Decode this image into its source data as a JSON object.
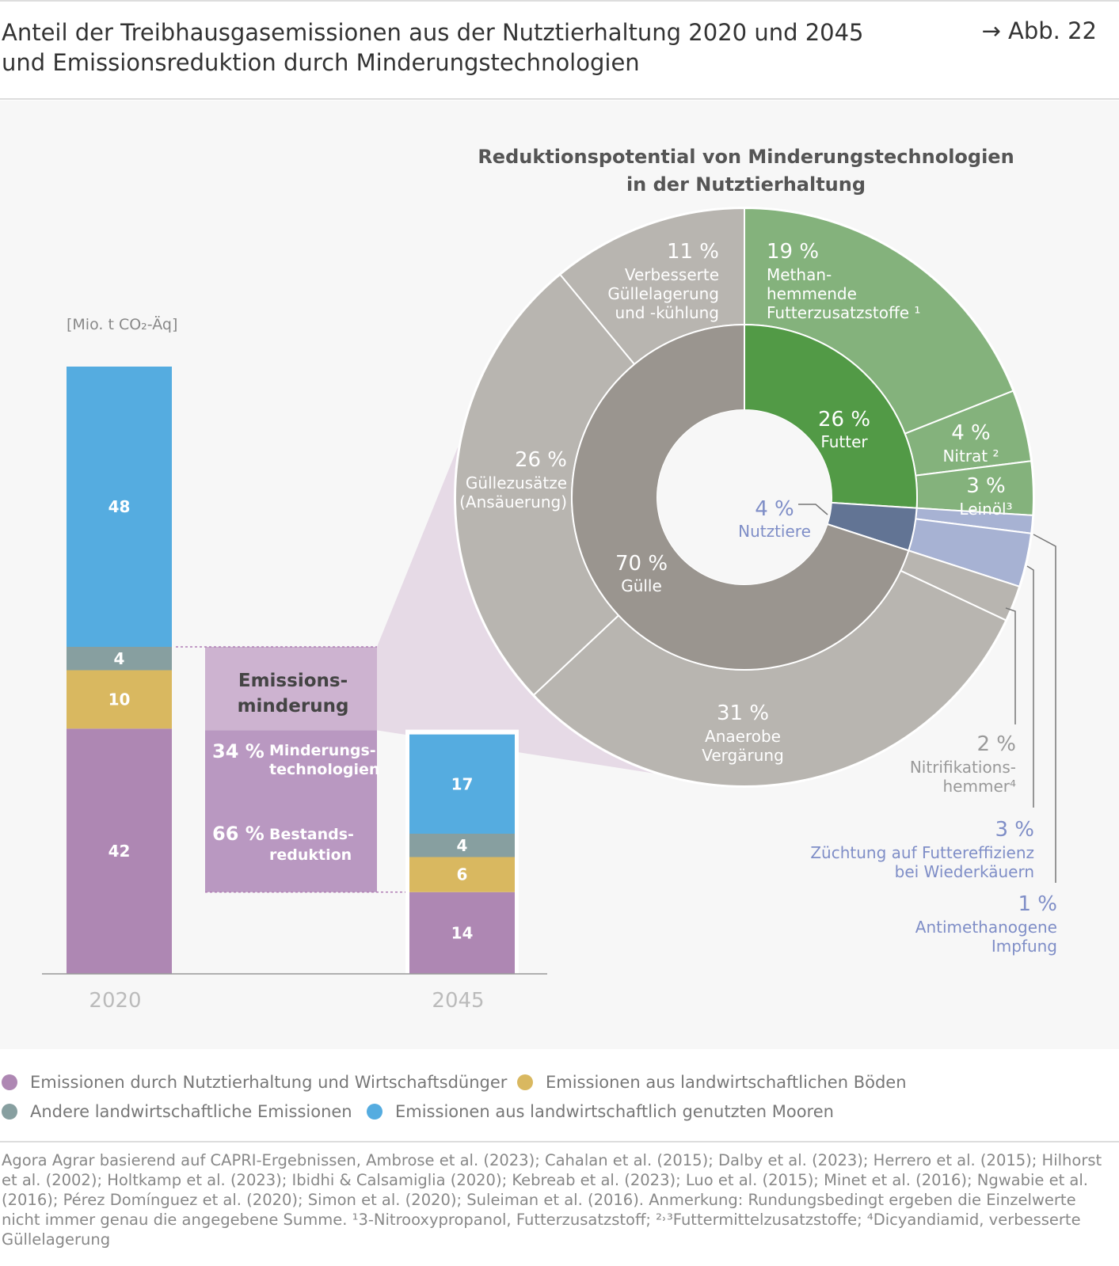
{
  "header": {
    "title_line1": "Anteil der Treibhausgasemissionen aus der Nutztierhaltung 2020 und 2045",
    "title_line2": "und Emissionsreduktion durch Minderungstechnologien",
    "figure_ref": "→ Abb. 22"
  },
  "colors": {
    "livestock": "#ae87b3",
    "soils": "#d9b860",
    "other": "#879fa0",
    "peat": "#55ace0",
    "mind_tech": "#cdb3d0",
    "bestand": "#b998c1",
    "green_outer": "#84b27c",
    "green_inner": "#529a46",
    "blue_outer": "#a7b2d3",
    "blue_inner": "#627494",
    "grey_outer": "#b8b5b0",
    "grey_inner": "#9a958f"
  },
  "chart_data": [
    {
      "type": "bar",
      "stacked": true,
      "unit_label": "[Mio. t CO₂-Äq]",
      "categories": [
        "2020",
        "2045"
      ],
      "series": [
        {
          "name": "Emissionen durch Nutztierhaltung und Wirtschaftsdünger",
          "values": [
            42,
            14
          ],
          "color_key": "livestock"
        },
        {
          "name": "Emissionen aus landwirtschaftlichen Böden",
          "values": [
            10,
            6
          ],
          "color_key": "soils"
        },
        {
          "name": "Andere landwirtschaftliche Emissionen",
          "values": [
            4,
            4
          ],
          "color_key": "other"
        },
        {
          "name": "Emissionen aus landwirtschaftlich genutzten Mooren",
          "values": [
            48,
            17
          ],
          "color_key": "peat"
        }
      ],
      "reduction": {
        "title_line1": "Emissions-",
        "title_line2": "minderung",
        "parts": [
          {
            "pct": "34 %",
            "label1": "Minderungs-",
            "label2": "technologien",
            "share": 34
          },
          {
            "pct": "66 %",
            "label1": "Bestands-",
            "label2": "reduktion",
            "share": 66
          }
        ]
      }
    },
    {
      "type": "pie",
      "title_line1": "Reduktionspotential von Minderungstechnologien",
      "title_line2": "in der Nutztierhaltung",
      "inner": [
        {
          "value": 26,
          "pct": "26 %",
          "label": "Futter",
          "color_key": "green_inner"
        },
        {
          "value": 4,
          "pct": "4 %",
          "label": "Nutztiere",
          "color_key": "blue_inner"
        },
        {
          "value": 70,
          "pct": "70 %",
          "label": "Gülle",
          "color_key": "grey_inner"
        }
      ],
      "outer": [
        {
          "value": 19,
          "pct": "19 %",
          "lines": [
            "Methan-",
            "hemmende",
            "Futterzusatzstoffe ¹"
          ],
          "color_key": "green_outer"
        },
        {
          "value": 4,
          "pct": "4 %",
          "lines": [
            "Nitrat ²"
          ],
          "color_key": "green_outer"
        },
        {
          "value": 3,
          "pct": "3 %",
          "lines": [
            "Leinöl³"
          ],
          "color_key": "green_outer"
        },
        {
          "value": 1,
          "pct": "1 %",
          "lines": [
            "Antimethanogene",
            "Impfung"
          ],
          "color_key": "blue_outer"
        },
        {
          "value": 3,
          "pct": "3 %",
          "lines": [
            "Züchtung auf Futtereffizienz",
            "bei Wiederkäuern"
          ],
          "color_key": "blue_outer"
        },
        {
          "value": 2,
          "pct": "2 %",
          "lines": [
            "Nitrifikations-",
            "hemmer⁴"
          ],
          "color_key": "grey_outer"
        },
        {
          "value": 31,
          "pct": "31 %",
          "lines": [
            "Anaerobe",
            "Vergärung"
          ],
          "color_key": "grey_outer"
        },
        {
          "value": 26,
          "pct": "26 %",
          "lines": [
            "Güllezusätze",
            "(Ansäuerung)"
          ],
          "color_key": "grey_outer"
        },
        {
          "value": 11,
          "pct": "11 %",
          "lines": [
            "Verbesserte",
            "Güllelagerung",
            "und -kühlung"
          ],
          "color_key": "grey_outer"
        }
      ]
    }
  ],
  "legend": [
    {
      "label": "Emissionen durch Nutztierhaltung und Wirtschaftsdünger",
      "color_key": "livestock"
    },
    {
      "label": "Emissionen aus landwirtschaftlichen Böden",
      "color_key": "soils"
    },
    {
      "label": "Andere landwirtschaftliche Emissionen",
      "color_key": "other"
    },
    {
      "label": "Emissionen aus landwirtschaftlich genutzten Mooren",
      "color_key": "peat"
    }
  ],
  "source": "Agora Agrar basierend auf CAPRI-Ergebnissen, Ambrose et al. (2023); Cahalan et al. (2015); Dalby et al. (2023); Herrero et al. (2015); Hilhorst et al. (2002); Holtkamp et al. (2023); Ibidhi & Calsamiglia (2020); Kebreab et al. (2023); Luo et al. (2015); Minet et al. (2016); Ngwabie et al. (2016); Pérez Domínguez et al. (2020); Simon et al. (2020); Suleiman et al. (2016). Anmerkung: Rundungsbedingt ergeben die Einzelwerte nicht immer genau die angegebene Summe. ¹3-Nitrooxypropanol, Futterzusatzstoff; ²˒³Futtermittelzusatzstoffe; ⁴Dicyandiamid, verbesserte Güllelagerung"
}
